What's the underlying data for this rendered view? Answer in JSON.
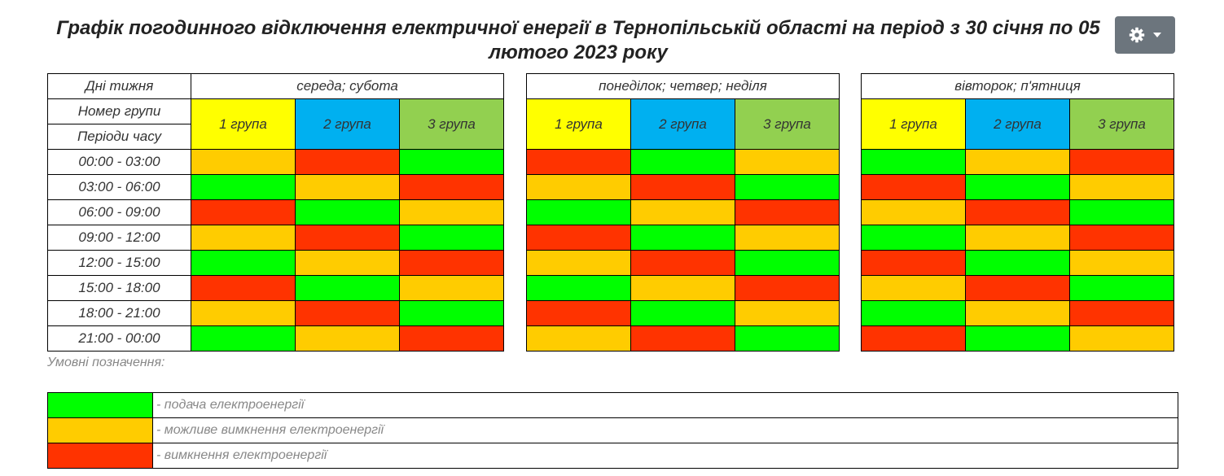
{
  "title": {
    "line_main": "Графік погодинного відключення електричної енергії  в Тернопільській області на період з 30 січня ",
    "line_bold": "по 05 лютого 2023 року"
  },
  "settings_button": {
    "icon": "gear-icon",
    "caret": "caret-down-icon"
  },
  "header": {
    "days_label": "Дні тижня",
    "group_label": "Номер групи",
    "period_label": "Періоди часу",
    "blocks": [
      {
        "days": "середа; субота",
        "groups": [
          "1 група",
          "2 група",
          "3 група"
        ]
      },
      {
        "days": "понеділок; четвер; неділя",
        "groups": [
          "1 група",
          "2 група",
          "3 група"
        ]
      },
      {
        "days": "вівторок; п'ятниця",
        "groups": [
          "1 група",
          "2 група",
          "3 група"
        ]
      }
    ]
  },
  "group_colors": [
    "#ffff00",
    "#00b0f0",
    "#92d050"
  ],
  "status_colors": {
    "on": "#00ff00",
    "maybe": "#ffcc00",
    "off": "#ff3300"
  },
  "rows": [
    {
      "period": "00:00 - 03:00",
      "cells": [
        [
          "maybe",
          "off",
          "on"
        ],
        [
          "off",
          "on",
          "maybe"
        ],
        [
          "on",
          "maybe",
          "off"
        ]
      ]
    },
    {
      "period": "03:00 - 06:00",
      "cells": [
        [
          "on",
          "maybe",
          "off"
        ],
        [
          "maybe",
          "off",
          "on"
        ],
        [
          "off",
          "on",
          "maybe"
        ]
      ]
    },
    {
      "period": "06:00 - 09:00",
      "cells": [
        [
          "off",
          "on",
          "maybe"
        ],
        [
          "on",
          "maybe",
          "off"
        ],
        [
          "maybe",
          "off",
          "on"
        ]
      ]
    },
    {
      "period": "09:00 - 12:00",
      "cells": [
        [
          "maybe",
          "off",
          "on"
        ],
        [
          "off",
          "on",
          "maybe"
        ],
        [
          "on",
          "maybe",
          "off"
        ]
      ]
    },
    {
      "period": "12:00 - 15:00",
      "cells": [
        [
          "on",
          "maybe",
          "off"
        ],
        [
          "maybe",
          "off",
          "on"
        ],
        [
          "off",
          "on",
          "maybe"
        ]
      ]
    },
    {
      "period": "15:00 - 18:00",
      "cells": [
        [
          "off",
          "on",
          "maybe"
        ],
        [
          "on",
          "maybe",
          "off"
        ],
        [
          "maybe",
          "off",
          "on"
        ]
      ]
    },
    {
      "period": "18:00 - 21:00",
      "cells": [
        [
          "maybe",
          "off",
          "on"
        ],
        [
          "off",
          "on",
          "maybe"
        ],
        [
          "on",
          "maybe",
          "off"
        ]
      ]
    },
    {
      "period": "21:00 - 00:00",
      "cells": [
        [
          "on",
          "maybe",
          "off"
        ],
        [
          "maybe",
          "off",
          "on"
        ],
        [
          "off",
          "on",
          "maybe"
        ]
      ]
    }
  ],
  "legend": {
    "title": "Умовні позначення:",
    "items": [
      {
        "status": "on",
        "label": "- подача електроенергії"
      },
      {
        "status": "maybe",
        "label": "- можливе вимкнення електроенергії"
      },
      {
        "status": "off",
        "label": "- вимкнення електроенергії"
      }
    ]
  }
}
